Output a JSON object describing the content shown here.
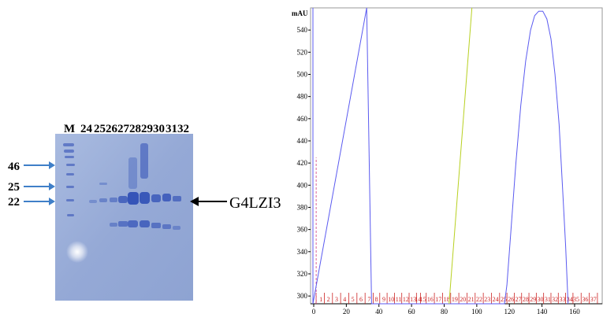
{
  "gel": {
    "lane_labels": [
      "M",
      "24",
      "25",
      "26",
      "27",
      "28",
      "29",
      "30",
      "31",
      "32"
    ],
    "markers": [
      {
        "label": "46"
      },
      {
        "label": "25"
      },
      {
        "label": "22"
      }
    ],
    "target_label": "G4LZI3",
    "colors": {
      "gel": "#9aaed8",
      "band": "#2f4fb6",
      "arrow": "#3f7fc8"
    }
  },
  "chart_data": {
    "type": "line",
    "ylabel": "mAU",
    "xlim": [
      0,
      175
    ],
    "ylim": [
      293,
      560
    ],
    "x_ticks": [
      0,
      20,
      40,
      60,
      80,
      100,
      120,
      140,
      160
    ],
    "y_ticks": [
      300,
      320,
      340,
      360,
      380,
      400,
      420,
      440,
      460,
      480,
      500,
      520,
      540
    ],
    "series": [
      {
        "color": "#5a5af0",
        "points": [
          [
            -0.5,
            560
          ],
          [
            -0.5,
            293
          ],
          [
            32.5,
            560
          ],
          [
            35.5,
            293
          ],
          [
            117,
            293
          ],
          [
            118.5,
            310
          ],
          [
            121,
            360
          ],
          [
            124,
            420
          ],
          [
            127,
            472
          ],
          [
            130,
            512
          ],
          [
            133,
            540
          ],
          [
            135.5,
            553
          ],
          [
            138,
            557
          ],
          [
            140.5,
            557
          ],
          [
            143,
            550
          ],
          [
            145.5,
            532
          ],
          [
            148,
            500
          ],
          [
            150.5,
            455
          ],
          [
            152.5,
            400
          ],
          [
            154.5,
            345
          ],
          [
            156,
            293
          ]
        ]
      },
      {
        "color": "#b8d020",
        "points": [
          [
            83,
            293
          ],
          [
            97,
            560
          ]
        ]
      }
    ],
    "fractions": {
      "color": "#cc2222",
      "labels": [
        "1",
        "2",
        "3",
        "4",
        "5",
        "6",
        "7",
        "8",
        "9",
        "10",
        "11",
        "12",
        "13",
        "14",
        "15",
        "16",
        "17",
        "18",
        "19",
        "20",
        "21",
        "22",
        "23",
        "24",
        "25",
        "26",
        "27",
        "28",
        "29",
        "30",
        "31",
        "32",
        "33",
        "34",
        "35",
        "36",
        "37"
      ],
      "marks": [
        1.5,
        6.5,
        11.5,
        16.5,
        21.5,
        26.5,
        31.5,
        36.5,
        40.5,
        45,
        49.5,
        54,
        58.5,
        63,
        65.5,
        69,
        74,
        79,
        84,
        89,
        94,
        99,
        104,
        109,
        114,
        118.5,
        123,
        127.5,
        132,
        136.5,
        141,
        145.5,
        150,
        154.5,
        159,
        164,
        169,
        174
      ],
      "label_x": [
        4.5,
        9,
        14,
        19,
        24,
        29,
        34,
        38.5,
        43,
        47.5,
        52,
        56.5,
        61,
        64,
        67,
        71.5,
        76.5,
        81.5,
        86.5,
        91.5,
        96.5,
        101.5,
        106.5,
        111.5,
        116.5,
        121,
        125.5,
        130,
        134.5,
        139,
        143.5,
        148,
        152.5,
        157,
        161,
        166.5,
        171.5
      ]
    }
  }
}
